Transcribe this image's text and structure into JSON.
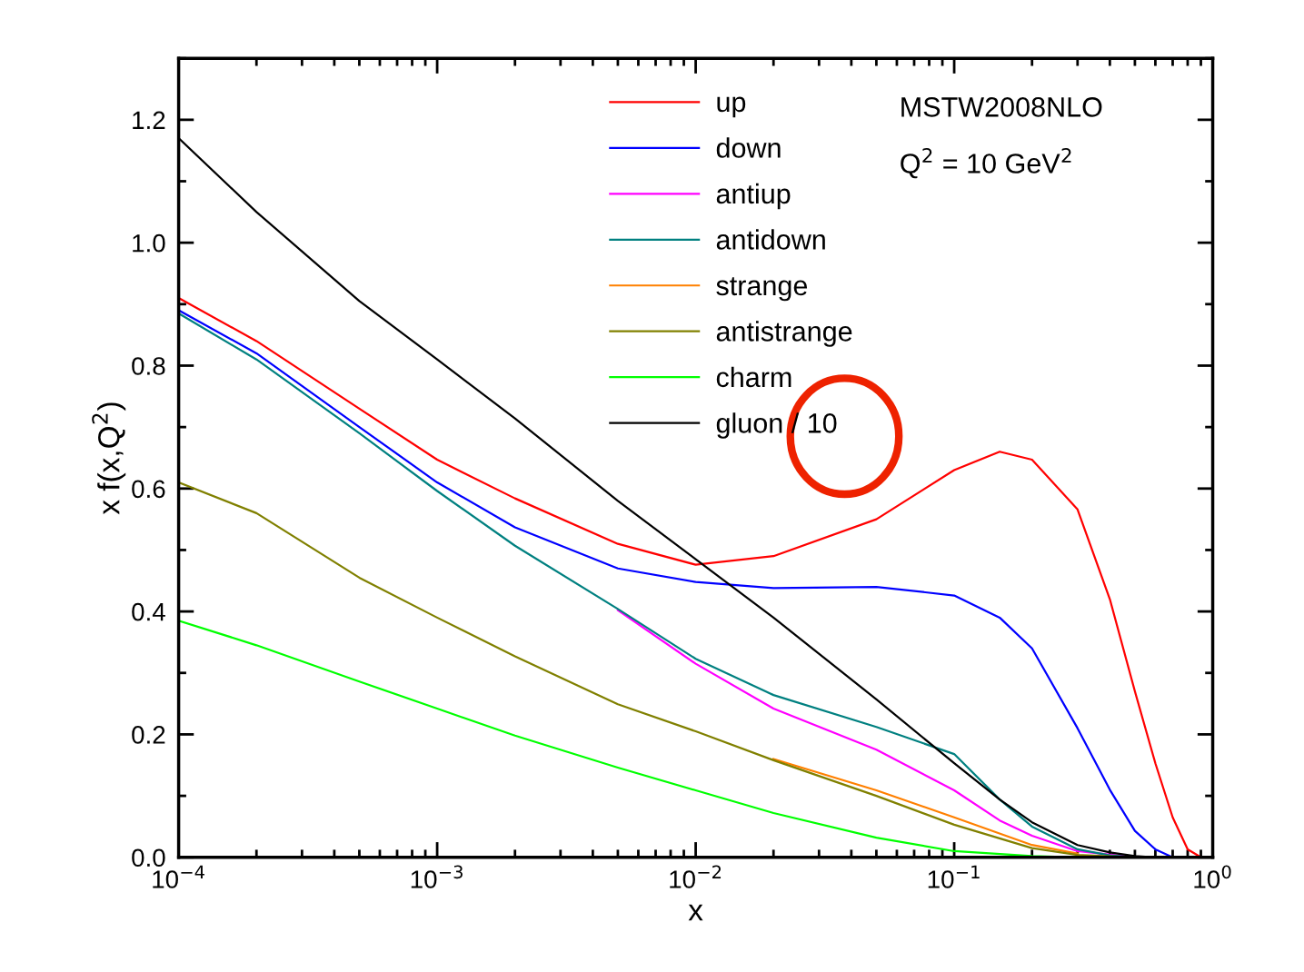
{
  "chart_data": {
    "type": "line",
    "xlabel": "x",
    "ylabel": "x f(x,Q$^{2}$)",
    "annotations": [
      "MSTW2008NLO",
      "Q$^{2}$ = 10 GeV$^{2}$"
    ],
    "log": "x",
    "xlim": [
      0.0001,
      1
    ],
    "ylim": [
      0,
      1.3
    ],
    "xticks": [
      {
        "value": 0.0001,
        "label": "10$^{−4}$"
      },
      {
        "value": 0.001,
        "label": "10$^{−3}$"
      },
      {
        "value": 0.01,
        "label": "10$^{−2}$"
      },
      {
        "value": 0.1,
        "label": "10$^{−1}$"
      },
      {
        "value": 1,
        "label": "10$^{0}$"
      }
    ],
    "yticks": [
      {
        "value": 0,
        "label": "0.0"
      },
      {
        "value": 0.2,
        "label": "0.2"
      },
      {
        "value": 0.4,
        "label": "0.4"
      },
      {
        "value": 0.6,
        "label": "0.6"
      },
      {
        "value": 0.8,
        "label": "0.8"
      },
      {
        "value": 1.0,
        "label": "1.0"
      },
      {
        "value": 1.2,
        "label": "1.2"
      }
    ],
    "grid": false,
    "legend": "top",
    "marker": "none",
    "line_style": "solid",
    "series": [
      {
        "name": "up",
        "color": "#ff0000",
        "x": [
          0.0001,
          0.0002,
          0.0005,
          0.001,
          0.002,
          0.005,
          0.01,
          0.02,
          0.05,
          0.1,
          0.15,
          0.2,
          0.3,
          0.4,
          0.5,
          0.6,
          0.7,
          0.8,
          0.9
        ],
        "values": [
          0.91,
          0.84,
          0.73,
          0.647,
          0.584,
          0.51,
          0.476,
          0.49,
          0.55,
          0.63,
          0.66,
          0.647,
          0.566,
          0.42,
          0.27,
          0.153,
          0.065,
          0.013,
          0.0
        ]
      },
      {
        "name": "down",
        "color": "#0000ff",
        "x": [
          0.0001,
          0.0002,
          0.0005,
          0.001,
          0.002,
          0.005,
          0.01,
          0.02,
          0.05,
          0.1,
          0.15,
          0.2,
          0.3,
          0.4,
          0.5,
          0.6,
          0.7
        ],
        "values": [
          0.89,
          0.82,
          0.7,
          0.61,
          0.537,
          0.47,
          0.448,
          0.438,
          0.44,
          0.426,
          0.39,
          0.34,
          0.21,
          0.11,
          0.043,
          0.013,
          0.0
        ]
      },
      {
        "name": "antiup",
        "color": "#ff00ff",
        "x": [
          0.005,
          0.01,
          0.02,
          0.05,
          0.1,
          0.15,
          0.2,
          0.3,
          0.5
        ],
        "values": [
          0.402,
          0.315,
          0.242,
          0.175,
          0.109,
          0.06,
          0.035,
          0.01,
          0.0
        ]
      },
      {
        "name": "antidown",
        "color": "#008080",
        "x": [
          0.0001,
          0.0002,
          0.0005,
          0.001,
          0.002,
          0.005,
          0.01,
          0.02,
          0.05,
          0.1,
          0.15,
          0.2,
          0.3,
          0.4,
          0.5
        ],
        "values": [
          0.885,
          0.81,
          0.69,
          0.596,
          0.507,
          0.404,
          0.323,
          0.264,
          0.212,
          0.168,
          0.094,
          0.05,
          0.013,
          0.003,
          0.0
        ]
      },
      {
        "name": "strange",
        "color": "#ff8000",
        "x": [
          0.02,
          0.05,
          0.1,
          0.2,
          0.3
        ],
        "values": [
          0.16,
          0.109,
          0.065,
          0.02,
          0.006
        ]
      },
      {
        "name": "antistrange",
        "color": "#808000",
        "x": [
          0.0001,
          0.0002,
          0.0005,
          0.001,
          0.002,
          0.005,
          0.01,
          0.02,
          0.05,
          0.1,
          0.2,
          0.3,
          0.5
        ],
        "values": [
          0.61,
          0.56,
          0.455,
          0.39,
          0.327,
          0.249,
          0.205,
          0.158,
          0.1,
          0.053,
          0.015,
          0.004,
          0.0
        ]
      },
      {
        "name": "charm",
        "color": "#00ff00",
        "x": [
          0.0001,
          0.0002,
          0.0005,
          0.001,
          0.002,
          0.005,
          0.01,
          0.02,
          0.05,
          0.1,
          0.2,
          0.3
        ],
        "values": [
          0.385,
          0.345,
          0.286,
          0.242,
          0.198,
          0.146,
          0.109,
          0.072,
          0.032,
          0.01,
          0.002,
          0.0
        ]
      },
      {
        "name": "gluon / 10",
        "color": "#000000",
        "x": [
          0.0001,
          0.0002,
          0.0005,
          0.001,
          0.002,
          0.005,
          0.01,
          0.02,
          0.05,
          0.1,
          0.15,
          0.2,
          0.3,
          0.4,
          0.5,
          0.6
        ],
        "values": [
          1.17,
          1.05,
          0.905,
          0.81,
          0.714,
          0.58,
          0.485,
          0.39,
          0.257,
          0.153,
          0.094,
          0.057,
          0.02,
          0.008,
          0.002,
          0.0
        ]
      }
    ]
  }
}
